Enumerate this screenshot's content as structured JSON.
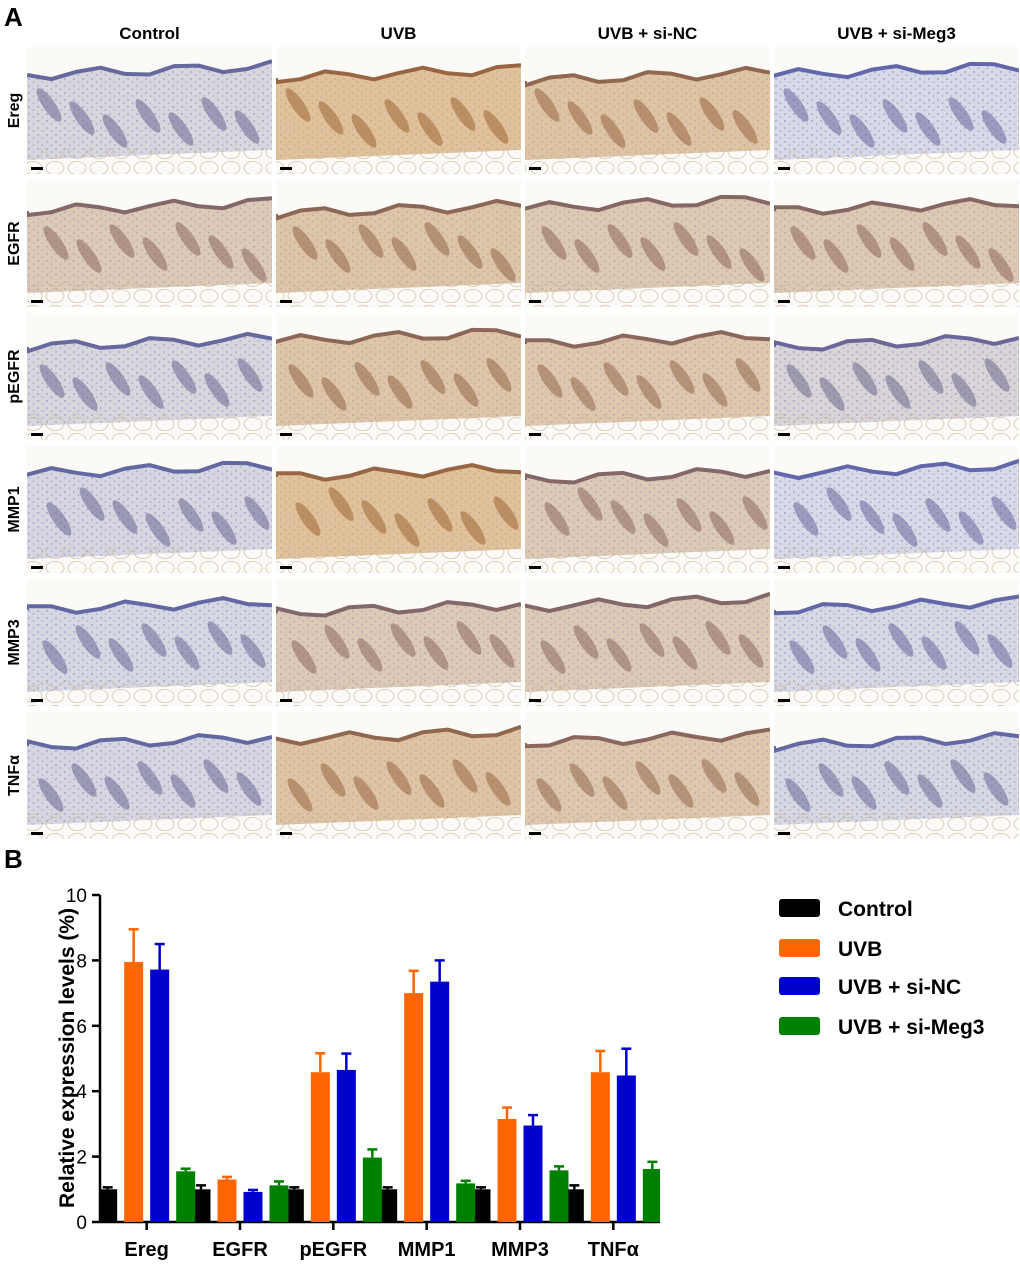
{
  "panel_a": {
    "label": "A",
    "columns": [
      "Control",
      "UVB",
      "UVB + si-NC",
      "UVB + si-Meg3"
    ],
    "rows": [
      "Ereg",
      "EGFR",
      "pEGFR",
      "MMP1",
      "MMP3",
      "TNFα"
    ],
    "stain_levels": [
      [
        0.15,
        0.85,
        0.75,
        0.05
      ],
      [
        0.55,
        0.7,
        0.6,
        0.6
      ],
      [
        0.15,
        0.7,
        0.65,
        0.2
      ],
      [
        0.12,
        0.85,
        0.55,
        0.05
      ],
      [
        0.1,
        0.55,
        0.55,
        0.08
      ],
      [
        0.12,
        0.75,
        0.65,
        0.1
      ]
    ]
  },
  "panel_b": {
    "label": "B"
  },
  "chart_data": {
    "type": "bar",
    "title": "",
    "xlabel": "",
    "ylabel": "Relative expression levels (%)",
    "ylim": [
      0,
      10
    ],
    "yticks": [
      "0",
      "2",
      "4",
      "6",
      "8",
      "10"
    ],
    "categories": [
      "Ereg",
      "EGFR",
      "pEGFR",
      "MMP1",
      "MMP3",
      "TNFα"
    ],
    "legend_position": "right",
    "series": [
      {
        "name": "Control",
        "color": "#000000",
        "values": [
          1.0,
          1.0,
          1.0,
          1.0,
          1.0,
          1.0
        ],
        "errors": [
          0.06,
          0.12,
          0.06,
          0.06,
          0.06,
          0.12
        ]
      },
      {
        "name": "UVB",
        "color": "#ff6600",
        "values": [
          7.95,
          1.3,
          4.58,
          7.0,
          3.15,
          4.58
        ],
        "errors": [
          1.0,
          0.08,
          0.58,
          0.68,
          0.35,
          0.65
        ]
      },
      {
        "name": "UVB + si-NC",
        "color": "#0000cc",
        "values": [
          7.72,
          0.92,
          4.65,
          7.35,
          2.95,
          4.48
        ],
        "errors": [
          0.78,
          0.06,
          0.5,
          0.65,
          0.32,
          0.82
        ]
      },
      {
        "name": "UVB + si-Meg3",
        "color": "#008000",
        "values": [
          1.55,
          1.12,
          1.97,
          1.18,
          1.58,
          1.62
        ],
        "errors": [
          0.08,
          0.12,
          0.25,
          0.08,
          0.12,
          0.22
        ]
      }
    ]
  }
}
